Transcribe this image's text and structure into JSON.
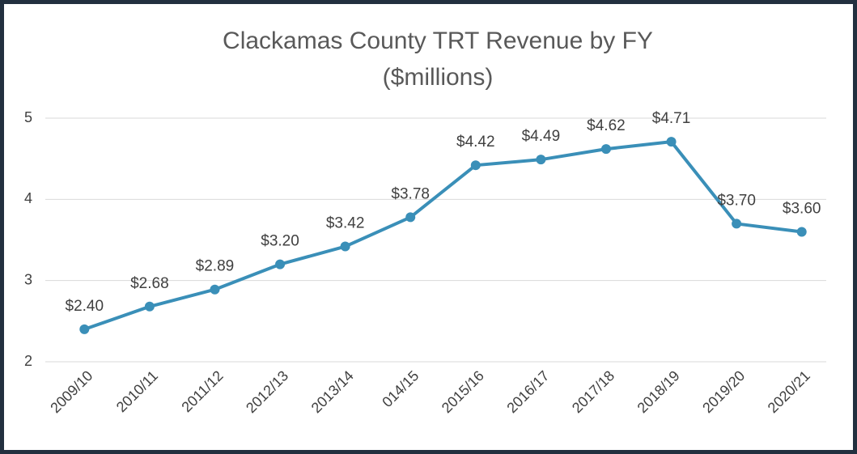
{
  "chart_data": {
    "type": "line",
    "title": "Clackamas County TRT Revenue by FY",
    "subtitle": "($millions)",
    "categories": [
      "2009/10",
      "2010/11",
      "2011/12",
      "2012/13",
      "2013/14",
      "014/15",
      "2015/16",
      "2016/17",
      "2017/18",
      "2018/19",
      "2019/20",
      "2020/21"
    ],
    "series": [
      {
        "name": "TRT Revenue",
        "color": "#3a8fb8",
        "values": [
          2.4,
          2.68,
          2.89,
          3.2,
          3.42,
          3.78,
          4.42,
          4.49,
          4.62,
          4.71,
          3.7,
          3.6
        ],
        "value_labels": [
          "$2.40",
          "$2.68",
          "$2.89",
          "$3.20",
          "$3.42",
          "$3.78",
          "$4.42",
          "$4.49",
          "$4.62",
          "$4.71",
          "$3.70",
          "$3.60"
        ]
      }
    ],
    "ylim": [
      2,
      5
    ],
    "yticks": [
      2,
      3,
      4,
      5
    ],
    "grid": true
  }
}
